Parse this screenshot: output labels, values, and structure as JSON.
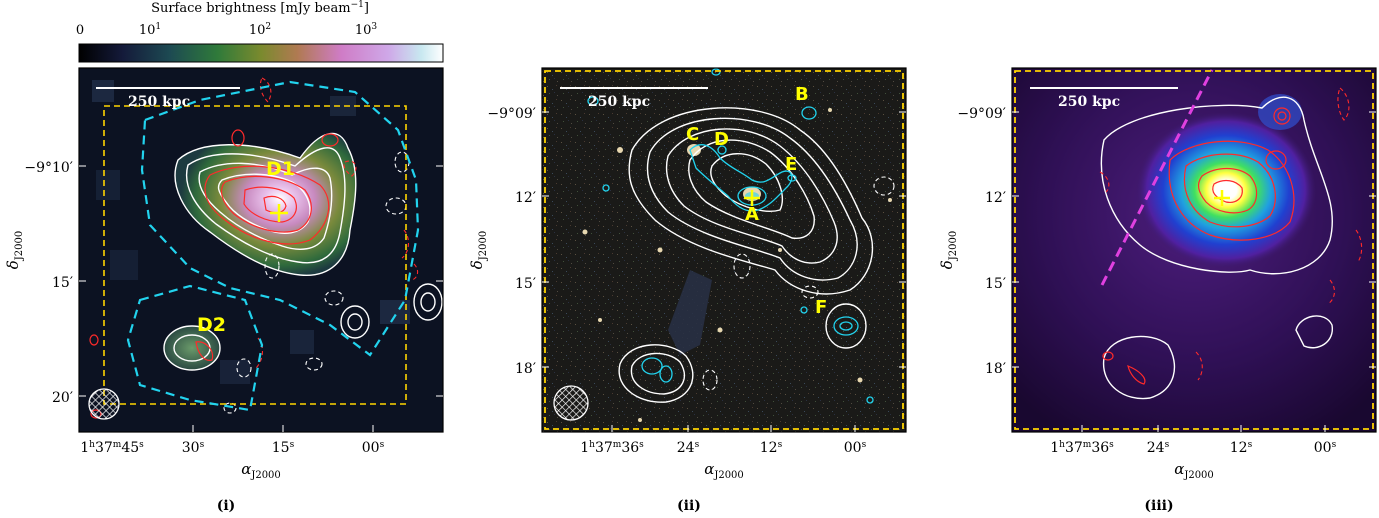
{
  "colorbar": {
    "label": "Surface brightness [mJy beam",
    "label_sup": "−1",
    "label_close": "]",
    "ticks": [
      "0",
      "10",
      "10",
      "10"
    ],
    "tick_sups": [
      "",
      "1",
      "2",
      "3"
    ]
  },
  "colors": {
    "region_cyan": "#22d3ee",
    "box_yellow": "#ffd400",
    "annotation_yellow": "#ffff00",
    "contour_white": "#ffffff",
    "contour_red": "#ff2a2a",
    "line_magenta": "#e040e0"
  },
  "scale_label": "250 kpc",
  "axes": {
    "dec_label": "δ",
    "dec_sub": "J2000",
    "ra_label": "α",
    "ra_sub": "J2000"
  },
  "panels": [
    {
      "caption": "(i)",
      "dec_ticks": [
        "−9°10′",
        "15′",
        "20′"
      ],
      "ra_first": {
        "h": "1",
        "m": "37",
        "s": "45"
      },
      "ra_ticks": [
        "30",
        "15",
        "00"
      ],
      "ra_unit": "s",
      "annotations": [
        "D1",
        "D2"
      ]
    },
    {
      "caption": "(ii)",
      "dec_ticks": [
        "−9°09′",
        "12′",
        "15′",
        "18′"
      ],
      "ra_first": {
        "h": "1",
        "m": "37",
        "s": "36"
      },
      "ra_ticks": [
        "24",
        "12",
        "00"
      ],
      "ra_unit": "s",
      "annotations": [
        "A",
        "B",
        "C",
        "D",
        "E",
        "F"
      ]
    },
    {
      "caption": "(iii)",
      "dec_ticks": [
        "−9°09′",
        "12′",
        "15′",
        "18′"
      ],
      "ra_first": {
        "h": "1",
        "m": "37",
        "s": "36"
      },
      "ra_ticks": [
        "24",
        "12",
        "00"
      ],
      "ra_unit": "s",
      "annotations": []
    }
  ]
}
